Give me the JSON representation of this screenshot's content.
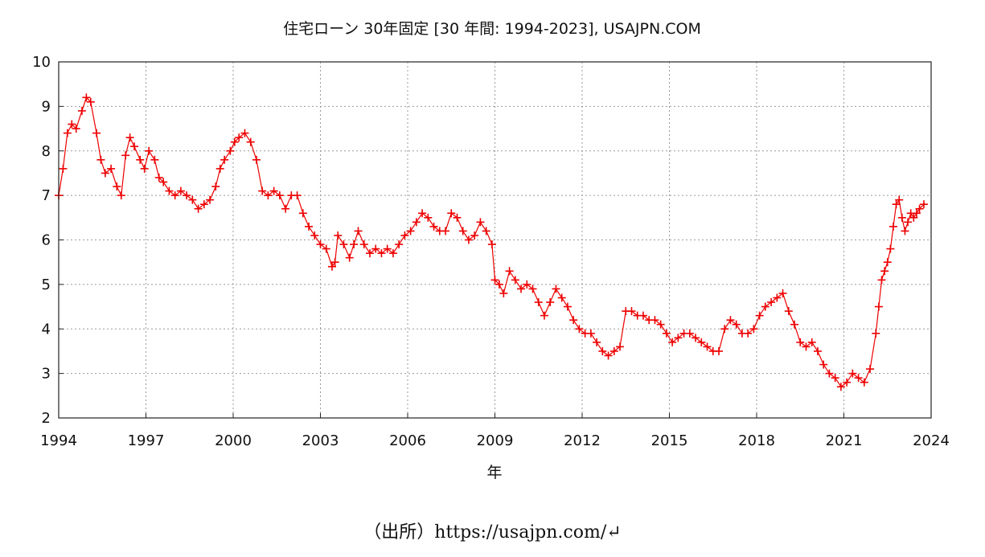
{
  "chart_data": {
    "type": "scatter",
    "title": "住宅ローン 30年固定 [30 年間: 1994-2023], USAJPN.COM",
    "xlabel": "年",
    "ylabel": "",
    "xlim": [
      1994,
      2024
    ],
    "ylim": [
      2,
      10
    ],
    "x_ticks": [
      1994,
      1997,
      2000,
      2003,
      2006,
      2009,
      2012,
      2015,
      2018,
      2021,
      2024
    ],
    "y_ticks": [
      2,
      3,
      4,
      5,
      6,
      7,
      8,
      9,
      10
    ],
    "x_tick_labels": [
      "1994",
      "1997",
      "2000",
      "2003",
      "2006",
      "2009",
      "2012",
      "2015",
      "2018",
      "2021",
      "2024"
    ],
    "y_tick_labels": [
      "2",
      "3",
      "4",
      "5",
      "6",
      "7",
      "8",
      "9",
      "10"
    ],
    "grid": true,
    "marker": "+",
    "series_color": "#ee0000",
    "series": [
      {
        "x": [
          1994.0,
          1994.15,
          1994.3,
          1994.45,
          1994.6,
          1994.8,
          1994.95,
          1995.1,
          1995.3,
          1995.45,
          1995.6,
          1995.8,
          1996.0,
          1996.15,
          1996.3,
          1996.45,
          1996.6,
          1996.8,
          1996.95,
          1997.1,
          1997.3,
          1997.45,
          1997.6,
          1997.8,
          1998.0,
          1998.2,
          1998.4,
          1998.6,
          1998.8,
          1999.0,
          1999.2,
          1999.4,
          1999.55,
          1999.7,
          1999.9,
          2000.05,
          2000.2,
          2000.4,
          2000.6,
          2000.8,
          2001.0,
          2001.2,
          2001.4,
          2001.6,
          2001.8,
          2002.0,
          2002.2,
          2002.4,
          2002.6,
          2002.8,
          2003.0,
          2003.2,
          2003.4,
          2003.5,
          2003.6,
          2003.8,
          2004.0,
          2004.15,
          2004.3,
          2004.5,
          2004.7,
          2004.9,
          2005.1,
          2005.3,
          2005.5,
          2005.7,
          2005.9,
          2006.1,
          2006.3,
          2006.5,
          2006.7,
          2006.9,
          2007.1,
          2007.3,
          2007.5,
          2007.7,
          2007.9,
          2008.1,
          2008.3,
          2008.5,
          2008.7,
          2008.9,
          2009.0,
          2009.15,
          2009.3,
          2009.5,
          2009.7,
          2009.9,
          2010.1,
          2010.3,
          2010.5,
          2010.7,
          2010.9,
          2011.1,
          2011.3,
          2011.5,
          2011.7,
          2011.9,
          2012.1,
          2012.3,
          2012.5,
          2012.7,
          2012.9,
          2013.1,
          2013.3,
          2013.5,
          2013.7,
          2013.9,
          2014.1,
          2014.3,
          2014.5,
          2014.7,
          2014.9,
          2015.1,
          2015.3,
          2015.5,
          2015.7,
          2015.9,
          2016.1,
          2016.3,
          2016.5,
          2016.7,
          2016.9,
          2017.1,
          2017.3,
          2017.5,
          2017.7,
          2017.9,
          2018.1,
          2018.3,
          2018.5,
          2018.7,
          2018.9,
          2019.1,
          2019.3,
          2019.5,
          2019.7,
          2019.9,
          2020.1,
          2020.3,
          2020.5,
          2020.7,
          2020.9,
          2021.1,
          2021.3,
          2021.5,
          2021.7,
          2021.9,
          2022.1,
          2022.2,
          2022.3,
          2022.4,
          2022.5,
          2022.6,
          2022.7,
          2022.8,
          2022.9,
          2023.0,
          2023.1,
          2023.2,
          2023.3,
          2023.4,
          2023.5,
          2023.6,
          2023.75
        ],
        "y": [
          7.0,
          7.6,
          8.4,
          8.6,
          8.5,
          8.9,
          9.2,
          9.1,
          8.4,
          7.8,
          7.5,
          7.6,
          7.2,
          7.0,
          7.9,
          8.3,
          8.1,
          7.8,
          7.6,
          8.0,
          7.8,
          7.4,
          7.3,
          7.1,
          7.0,
          7.1,
          7.0,
          6.9,
          6.7,
          6.8,
          6.9,
          7.2,
          7.6,
          7.8,
          8.0,
          8.2,
          8.3,
          8.4,
          8.2,
          7.8,
          7.1,
          7.0,
          7.1,
          7.0,
          6.7,
          7.0,
          7.0,
          6.6,
          6.3,
          6.1,
          5.9,
          5.8,
          5.4,
          5.5,
          6.1,
          5.9,
          5.6,
          5.9,
          6.2,
          5.9,
          5.7,
          5.8,
          5.7,
          5.8,
          5.7,
          5.9,
          6.1,
          6.2,
          6.4,
          6.6,
          6.5,
          6.3,
          6.2,
          6.2,
          6.6,
          6.5,
          6.2,
          6.0,
          6.1,
          6.4,
          6.2,
          5.9,
          5.1,
          5.0,
          4.8,
          5.3,
          5.1,
          4.9,
          5.0,
          4.9,
          4.6,
          4.3,
          4.6,
          4.9,
          4.7,
          4.5,
          4.2,
          4.0,
          3.9,
          3.9,
          3.7,
          3.5,
          3.4,
          3.5,
          3.6,
          4.4,
          4.4,
          4.3,
          4.3,
          4.2,
          4.2,
          4.1,
          3.9,
          3.7,
          3.8,
          3.9,
          3.9,
          3.8,
          3.7,
          3.6,
          3.5,
          3.5,
          4.0,
          4.2,
          4.1,
          3.9,
          3.9,
          4.0,
          4.3,
          4.5,
          4.6,
          4.7,
          4.8,
          4.4,
          4.1,
          3.7,
          3.6,
          3.7,
          3.5,
          3.2,
          3.0,
          2.9,
          2.7,
          2.8,
          3.0,
          2.9,
          2.8,
          3.1,
          3.9,
          4.5,
          5.1,
          5.3,
          5.5,
          5.8,
          6.3,
          6.8,
          6.9,
          6.5,
          6.2,
          6.4,
          6.6,
          6.5,
          6.6,
          6.7,
          6.8
        ]
      }
    ]
  },
  "source_note": "（出所）https://usajpn.com/↵"
}
